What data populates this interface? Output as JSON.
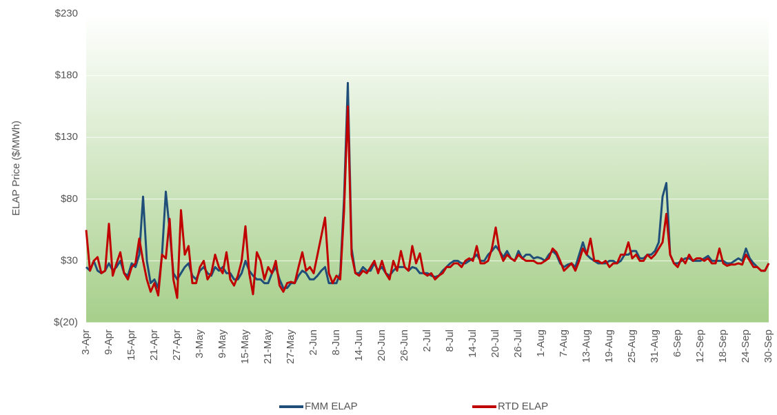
{
  "chart_data": {
    "type": "line",
    "y_label": "ELAP Price ($/MWh)",
    "categories": [
      "3-Apr",
      null,
      null,
      null,
      null,
      null,
      "9-Apr",
      null,
      null,
      null,
      null,
      null,
      "15-Apr",
      null,
      null,
      null,
      null,
      null,
      "21-Apr",
      null,
      null,
      null,
      null,
      null,
      "27-Apr",
      null,
      null,
      null,
      null,
      null,
      "3-May",
      null,
      null,
      null,
      null,
      null,
      "9-May",
      null,
      null,
      null,
      null,
      null,
      "15-May",
      null,
      null,
      null,
      null,
      null,
      "21-May",
      null,
      null,
      null,
      null,
      null,
      "27-May",
      null,
      null,
      null,
      null,
      null,
      "2-Jun",
      null,
      null,
      null,
      null,
      null,
      "8-Jun",
      null,
      null,
      null,
      null,
      null,
      "14-Jun",
      null,
      null,
      null,
      null,
      null,
      "20-Jun",
      null,
      null,
      null,
      null,
      null,
      "26-Jun",
      null,
      null,
      null,
      null,
      null,
      "2-Jul",
      null,
      null,
      null,
      null,
      null,
      "8-Jul",
      null,
      null,
      null,
      null,
      null,
      "14-Jul",
      null,
      null,
      null,
      null,
      null,
      "20-Jul",
      null,
      null,
      null,
      null,
      null,
      "26-Jul",
      null,
      null,
      null,
      null,
      null,
      "1-Aug",
      null,
      null,
      null,
      null,
      null,
      "7-Aug",
      null,
      null,
      null,
      null,
      null,
      "13-Aug",
      null,
      null,
      null,
      null,
      null,
      "19-Aug",
      null,
      null,
      null,
      null,
      null,
      "25-Aug",
      null,
      null,
      null,
      null,
      null,
      "31-Aug",
      null,
      null,
      null,
      null,
      null,
      "6-Sep",
      null,
      null,
      null,
      null,
      null,
      "12-Sep",
      null,
      null,
      null,
      null,
      null,
      "18-Sep",
      null,
      null,
      null,
      null,
      null,
      "24-Sep",
      null,
      null,
      null,
      null,
      null,
      "30-Sep"
    ],
    "series": [
      {
        "name": "FMM ELAP",
        "color": "#1f4e79",
        "values": [
          25,
          22,
          30,
          22,
          20,
          22,
          28,
          22,
          25,
          30,
          20,
          18,
          28,
          25,
          35,
          82,
          30,
          12,
          15,
          8,
          35,
          86,
          55,
          20,
          15,
          20,
          25,
          28,
          18,
          15,
          22,
          25,
          20,
          18,
          25,
          22,
          25,
          20,
          20,
          15,
          15,
          20,
          30,
          22,
          18,
          15,
          15,
          12,
          12,
          20,
          25,
          15,
          8,
          8,
          12,
          12,
          18,
          22,
          20,
          15,
          15,
          18,
          22,
          25,
          12,
          12,
          12,
          20,
          80,
          174,
          40,
          20,
          20,
          25,
          22,
          22,
          28,
          22,
          25,
          20,
          18,
          22,
          25,
          25,
          25,
          22,
          25,
          24,
          20,
          20,
          20,
          18,
          17,
          18,
          22,
          25,
          28,
          30,
          30,
          28,
          28,
          30,
          32,
          35,
          30,
          30,
          35,
          38,
          42,
          38,
          33,
          38,
          32,
          30,
          38,
          32,
          35,
          35,
          32,
          33,
          32,
          30,
          35,
          38,
          35,
          28,
          25,
          27,
          28,
          25,
          35,
          45,
          35,
          32,
          30,
          28,
          28,
          28,
          30,
          30,
          28,
          30,
          35,
          35,
          38,
          38,
          32,
          32,
          35,
          35,
          38,
          45,
          82,
          93,
          35,
          28,
          28,
          30,
          32,
          32,
          30,
          30,
          30,
          32,
          34,
          30,
          30,
          30,
          30,
          28,
          28,
          30,
          32,
          30,
          40,
          32,
          28,
          25,
          22,
          22,
          28
        ]
      },
      {
        "name": "RTD ELAP",
        "color": "#c00000",
        "values": [
          55,
          22,
          30,
          33,
          20,
          22,
          60,
          18,
          28,
          37,
          20,
          15,
          25,
          28,
          48,
          30,
          15,
          5,
          12,
          2,
          35,
          32,
          64,
          15,
          0,
          71,
          35,
          42,
          12,
          12,
          25,
          30,
          15,
          20,
          35,
          25,
          20,
          37,
          15,
          10,
          18,
          30,
          58,
          20,
          3,
          37,
          30,
          15,
          25,
          20,
          30,
          10,
          5,
          12,
          13,
          12,
          25,
          37,
          22,
          25,
          20,
          35,
          50,
          65,
          20,
          12,
          18,
          15,
          70,
          155,
          35,
          20,
          18,
          22,
          20,
          25,
          30,
          20,
          30,
          20,
          15,
          30,
          22,
          38,
          25,
          22,
          42,
          28,
          36,
          20,
          18,
          20,
          15,
          18,
          20,
          25,
          25,
          28,
          28,
          25,
          30,
          32,
          30,
          42,
          28,
          28,
          30,
          40,
          57,
          38,
          30,
          35,
          32,
          30,
          35,
          32,
          30,
          30,
          30,
          28,
          28,
          30,
          32,
          40,
          37,
          30,
          22,
          25,
          28,
          22,
          30,
          40,
          35,
          48,
          30,
          30,
          28,
          30,
          25,
          28,
          28,
          35,
          35,
          45,
          32,
          35,
          30,
          30,
          35,
          32,
          35,
          40,
          45,
          68,
          35,
          28,
          25,
          32,
          28,
          35,
          30,
          32,
          32,
          30,
          32,
          28,
          28,
          40,
          28,
          26,
          27,
          27,
          28,
          27,
          35,
          30,
          25,
          25,
          22,
          22,
          28
        ]
      }
    ],
    "ylim": [
      -20,
      230
    ],
    "yticks": [
      {
        "value": -20,
        "label": "$(20)"
      },
      {
        "value": 30,
        "label": "$30"
      },
      {
        "value": 80,
        "label": "$80"
      },
      {
        "value": 130,
        "label": "$130"
      },
      {
        "value": 180,
        "label": "$180"
      },
      {
        "value": 230,
        "label": "$230"
      }
    ],
    "grid": true
  }
}
